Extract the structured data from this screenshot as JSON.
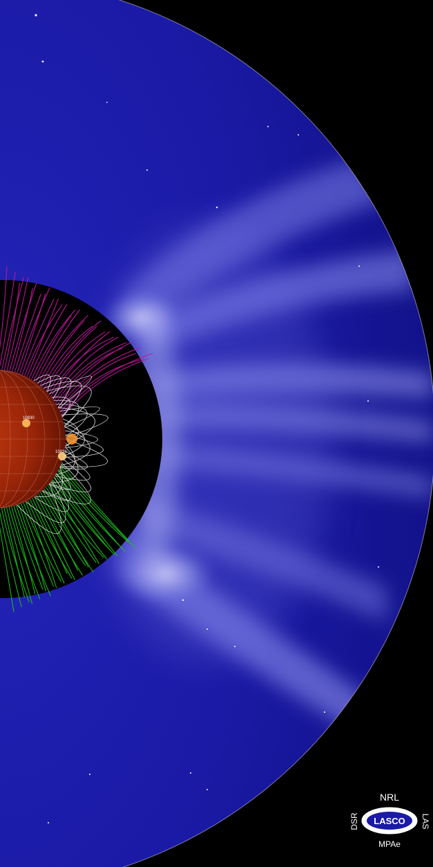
{
  "image": {
    "subject": "coronagraph view of a coronal mass ejection with a solar disk and magnetic field lines",
    "colors": {
      "sky": "#1a1aa6",
      "sky_dark": "#0e0e7a",
      "corner": "#000000",
      "occulter": "#000000",
      "sun_core": "#b4300c",
      "sun_edge": "#5a1003",
      "open_field_north": "#c2189e",
      "open_field_south": "#19c21a",
      "closed_loops": "#e6e6e6",
      "cme_glow": "#dcdcff"
    }
  },
  "active_regions": {
    "upper": "10830",
    "lower": "10833"
  },
  "logo": {
    "top": "NRL",
    "center": "LASCO",
    "bottom": "MPAe",
    "left": "DSR",
    "right": "LAS"
  }
}
